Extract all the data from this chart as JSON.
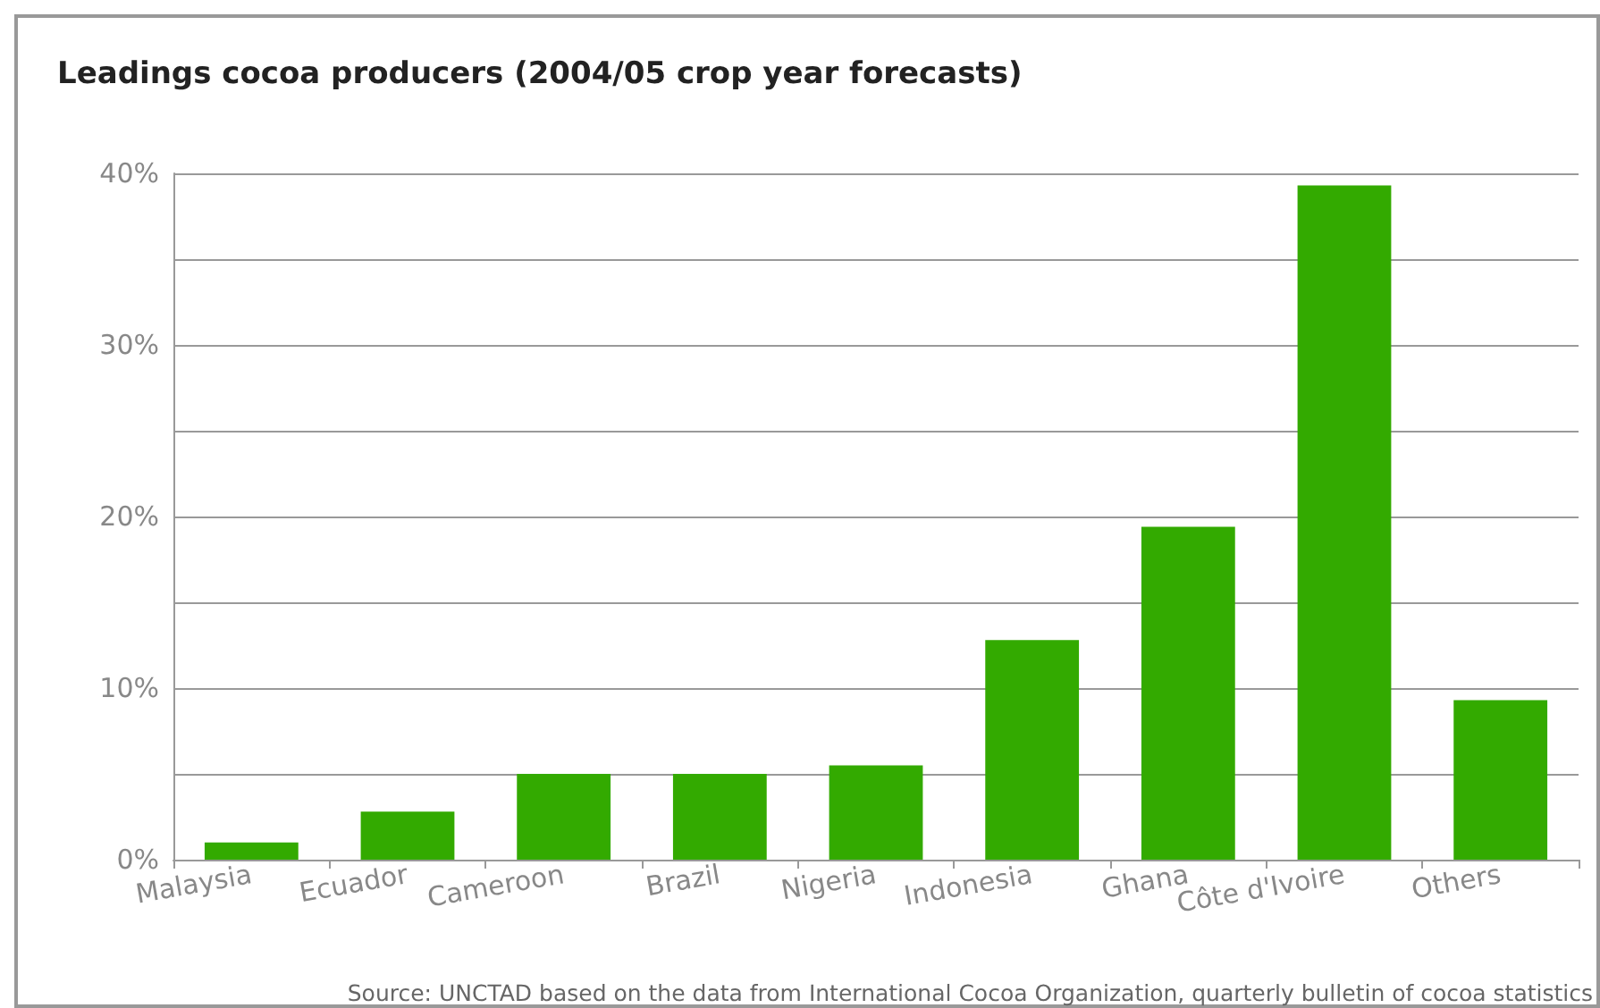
{
  "chart_data": {
    "type": "bar",
    "title": "Leadings cocoa producers (2004/05 crop year forecasts)",
    "categories": [
      "Malaysia",
      "Ecuador",
      "Cameroon",
      "Brazil",
      "Nigeria",
      "Indonesia",
      "Ghana",
      "Côte d'Ivoire",
      "Others"
    ],
    "values": [
      1.0,
      2.8,
      5.0,
      5.0,
      5.5,
      12.8,
      19.4,
      39.3,
      9.3
    ],
    "color": "#33aa00",
    "ylim": [
      0,
      40
    ],
    "yticks": [
      {
        "value": 0,
        "label": "0%"
      },
      {
        "value": 5,
        "label": null
      },
      {
        "value": 10,
        "label": "10%"
      },
      {
        "value": 15,
        "label": null
      },
      {
        "value": 20,
        "label": "20%"
      },
      {
        "value": 25,
        "label": null
      },
      {
        "value": 30,
        "label": "30%"
      },
      {
        "value": 35,
        "label": null
      },
      {
        "value": 40,
        "label": "40%"
      }
    ],
    "grid": "y",
    "annotations": [
      "Source: UNCTAD based on the data from International Cocoa Organization, quarterly bulletin of cocoa statistics"
    ]
  }
}
